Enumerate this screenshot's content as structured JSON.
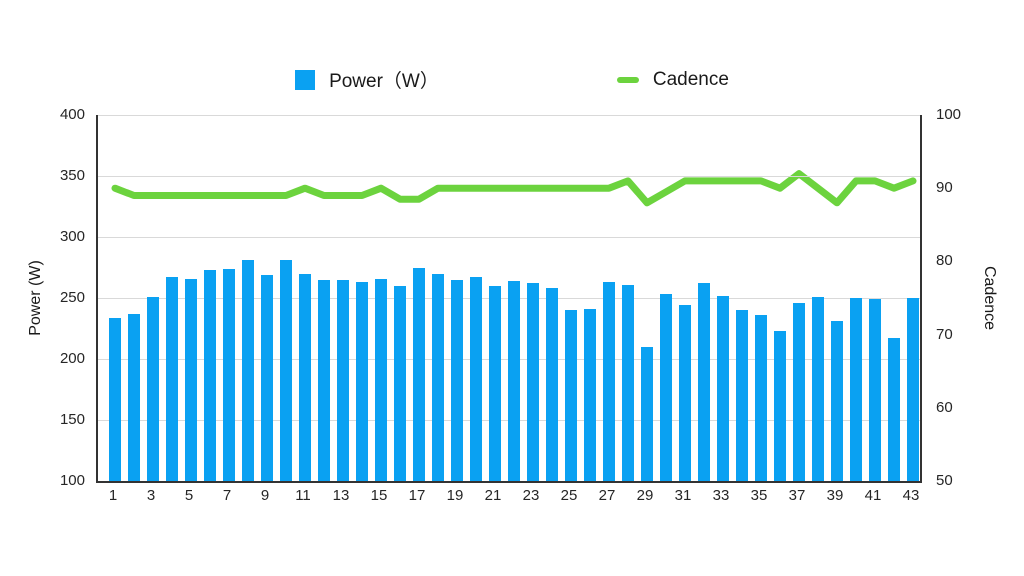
{
  "legend": {
    "power_label": "Power（W）",
    "cadence_label": "Cadence"
  },
  "left_axis": {
    "title": "Power (W)",
    "ticks": [
      "400",
      "350",
      "300",
      "250",
      "200",
      "150",
      "100"
    ]
  },
  "right_axis": {
    "title": "Cadence",
    "ticks": [
      "100",
      "90",
      "80",
      "70",
      "60",
      "50"
    ]
  },
  "x_axis": {
    "tick_labels": [
      "1",
      "3",
      "5",
      "7",
      "9",
      "11",
      "13",
      "15",
      "17",
      "19",
      "21",
      "23",
      "25",
      "27",
      "29",
      "31",
      "33",
      "35",
      "37",
      "39",
      "41",
      "43"
    ]
  },
  "colors": {
    "power_bar": "#0aa1f2",
    "cadence_line": "#6cd33e",
    "grid": "#d9d9d9",
    "axis": "#333333",
    "text": "#262626"
  },
  "chart_data": {
    "type": "bar+line",
    "x": [
      1,
      2,
      3,
      4,
      5,
      6,
      7,
      8,
      9,
      10,
      11,
      12,
      13,
      14,
      15,
      16,
      17,
      18,
      19,
      20,
      21,
      22,
      23,
      24,
      25,
      26,
      27,
      28,
      29,
      30,
      31,
      32,
      33,
      34,
      35,
      36,
      37,
      38,
      39,
      40,
      41,
      42,
      43
    ],
    "series": [
      {
        "name": "Power（W）",
        "type": "bar",
        "axis": "left",
        "color": "#0aa1f2",
        "values": [
          234,
          237,
          251,
          267,
          266,
          273,
          274,
          281,
          269,
          281,
          270,
          265,
          265,
          263,
          266,
          260,
          275,
          270,
          265,
          267,
          260,
          264,
          262,
          258,
          240,
          241,
          263,
          261,
          210,
          253,
          244,
          262,
          252,
          240,
          236,
          223,
          246,
          251,
          231,
          250,
          249,
          217,
          250
        ]
      },
      {
        "name": "Cadence",
        "type": "line",
        "axis": "right",
        "color": "#6cd33e",
        "values": [
          90,
          89,
          89,
          89,
          89,
          89,
          89,
          89,
          89,
          89,
          90,
          89,
          89,
          89,
          90,
          88.5,
          88.5,
          90,
          90,
          90,
          90,
          90,
          90,
          90,
          90,
          90,
          90,
          91,
          88,
          89.5,
          91,
          91,
          91,
          91,
          91,
          90,
          92,
          90,
          88,
          91,
          91,
          90,
          91
        ]
      }
    ],
    "left_ylabel": "Power (W)",
    "right_ylabel": "Cadence",
    "left_ylim": [
      100,
      400
    ],
    "right_ylim": [
      50,
      100
    ],
    "grid": true,
    "legend_position": "top"
  }
}
